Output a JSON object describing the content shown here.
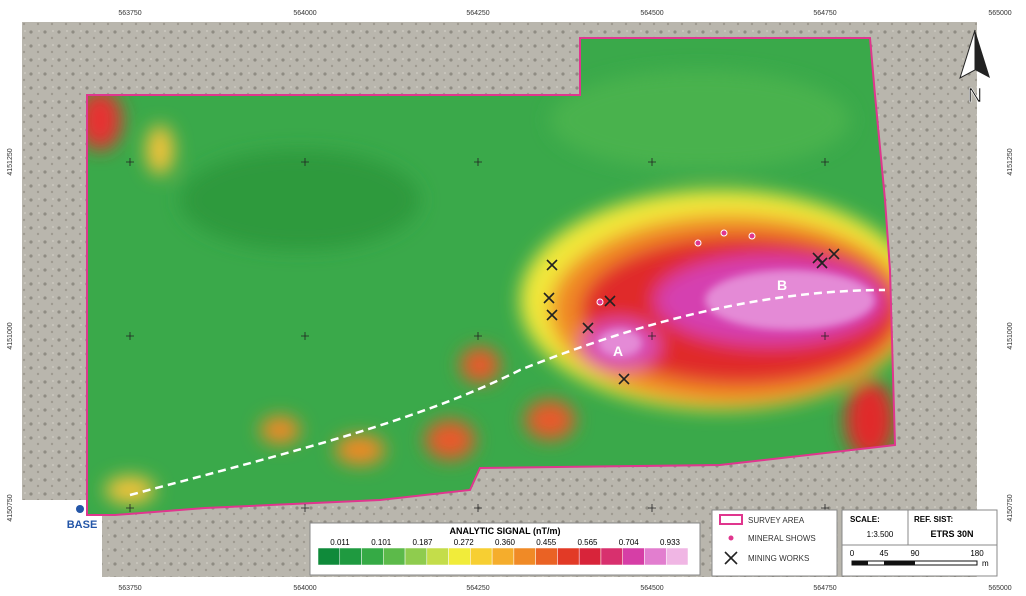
{
  "axes": {
    "x_labels": [
      "563750",
      "564000",
      "564250",
      "564500",
      "564750",
      "565000"
    ],
    "y_labels": [
      "4151250",
      "4151000",
      "4150750"
    ]
  },
  "north": "N",
  "anomalies": [
    "A",
    "B"
  ],
  "base": "BASE",
  "legend": {
    "title": "ANALYTIC SIGNAL (nT/m)",
    "values": [
      "0.011",
      "0.101",
      "0.187",
      "0.272",
      "0.360",
      "0.455",
      "0.565",
      "0.704",
      "0.933"
    ],
    "items": [
      "SURVEY AREA",
      "MINERAL SHOWS",
      "MINING WORKS"
    ]
  },
  "scale": {
    "label": "SCALE:",
    "value": "1:3.500",
    "ref_label": "REF. SIST:",
    "ref_value": "ETRS 30N",
    "bar_labels": [
      "0",
      "45",
      "90",
      "180"
    ],
    "unit": "m"
  }
}
